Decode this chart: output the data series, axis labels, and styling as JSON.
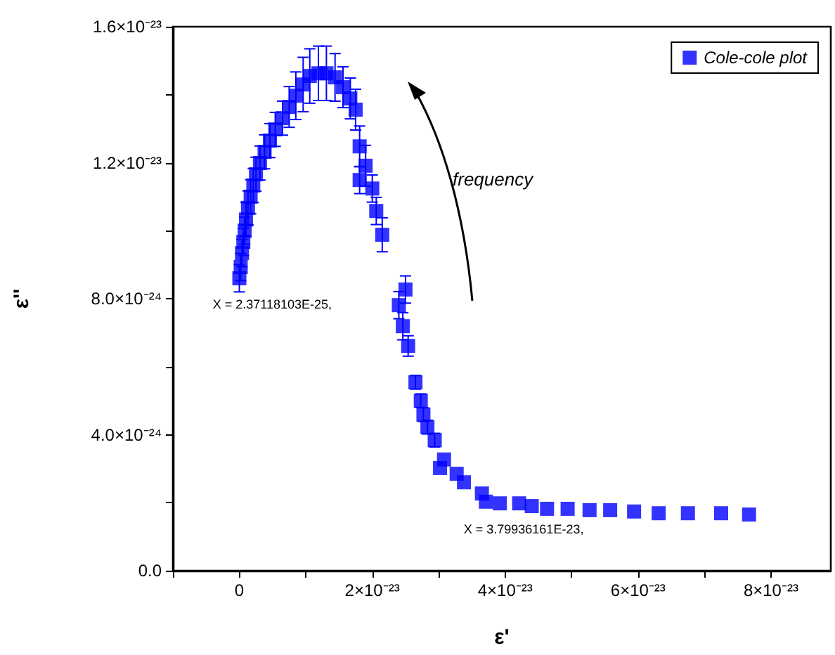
{
  "chart_data": {
    "type": "scatter",
    "xlabel": "ε'",
    "ylabel": "ε''",
    "xlim": [
      -1e-23,
      8.9e-23
    ],
    "ylim": [
      0,
      1.6e-23
    ],
    "xticks": [
      {
        "value": -1e-23,
        "label": null
      },
      {
        "value": 0,
        "label": "0"
      },
      {
        "value": 1e-23,
        "label": null
      },
      {
        "value": 2e-23,
        "label": "2×10⁻²³"
      },
      {
        "value": 3e-23,
        "label": null
      },
      {
        "value": 4e-23,
        "label": "4×10⁻²³"
      },
      {
        "value": 5e-23,
        "label": null
      },
      {
        "value": 6e-23,
        "label": "6×10⁻²³"
      },
      {
        "value": 7e-23,
        "label": null
      },
      {
        "value": 8e-23,
        "label": "8×10⁻²³"
      }
    ],
    "yticks": [
      {
        "value": 0,
        "label": "0.0"
      },
      {
        "value": 2e-24,
        "label": null
      },
      {
        "value": 4e-24,
        "label": "4.0×10⁻²⁴"
      },
      {
        "value": 6e-24,
        "label": null
      },
      {
        "value": 8e-24,
        "label": "8.0×10⁻²⁴"
      },
      {
        "value": 1e-23,
        "label": null
      },
      {
        "value": 1.2e-23,
        "label": "1.2×10⁻²³"
      },
      {
        "value": 1.4e-23,
        "label": null
      },
      {
        "value": 1.6e-23,
        "label": "1.6×10⁻²³"
      }
    ],
    "grid": false,
    "legend": "top right",
    "marker": "square",
    "annotations": [
      {
        "text": "X = 2.37118103E-25,",
        "x": 2.37118103e-25,
        "y": 8.6e-24
      },
      {
        "text": "X = 3.79936161E-23,",
        "x": 3.79936161e-23,
        "y": 1.98e-24
      },
      "frequency"
    ],
    "series": [
      {
        "name": "Cole-cole plot",
        "color": "#0000ff",
        "x": [
          0,
          2e-25,
          4e-25,
          6e-25,
          8e-25,
          1e-24,
          1.3e-24,
          1.7e-24,
          2.1e-24,
          2.5e-24,
          3.1e-24,
          3.8e-24,
          4.6e-24,
          5.4e-24,
          6.5e-24,
          7.5e-24,
          8.5e-24,
          9.6e-24,
          1.06e-23,
          1.19e-23,
          1.31e-23,
          1.44e-23,
          1.56e-23,
          1.67e-23,
          1.75e-23,
          1.81e-23,
          1.9e-23,
          1.81e-23,
          2e-23,
          2.06e-23,
          2.15e-23,
          2.5e-23,
          2.4e-23,
          2.46e-23,
          2.54e-23,
          2.65e-23,
          2.73e-23,
          2.77e-23,
          2.83e-23,
          2.94e-23,
          3.08e-23,
          3.02e-23,
          3.27e-23,
          3.38e-23,
          3.65e-23,
          3.71e-23,
          3.92e-23,
          4.21e-23,
          4.4e-23,
          4.63e-23,
          4.94e-23,
          5.27e-23,
          5.58e-23,
          5.94e-23,
          6.31e-23,
          6.75e-23,
          7.25e-23,
          7.67e-23
        ],
        "values": [
          8.6e-24,
          8.93e-24,
          9.34e-24,
          9.67e-24,
          1e-23,
          1.033e-23,
          1.067e-23,
          1.1e-23,
          1.133e-23,
          1.166e-23,
          1.199e-23,
          1.232e-23,
          1.265e-23,
          1.298e-23,
          1.331e-23,
          1.364e-23,
          1.397e-23,
          1.43e-23,
          1.455e-23,
          1.463e-23,
          1.463e-23,
          1.451e-23,
          1.422e-23,
          1.389e-23,
          1.356e-23,
          1.248e-23,
          1.191e-23,
          1.149e-23,
          1.124e-23,
          1.058e-23,
          9.88e-24,
          8.27e-24,
          7.81e-24,
          7.19e-24,
          6.61e-24,
          5.54e-24,
          5e-24,
          4.59e-24,
          4.22e-24,
          3.84e-24,
          3.27e-24,
          3.02e-24,
          2.85e-24,
          2.6e-24,
          2.27e-24,
          2.03e-24,
          1.98e-24,
          1.98e-24,
          1.9e-24,
          1.82e-24,
          1.82e-24,
          1.78e-24,
          1.78e-24,
          1.74e-24,
          1.69e-24,
          1.69e-24,
          1.69e-24,
          1.65e-24
        ],
        "errors": [
          4e-25,
          4e-25,
          4e-25,
          4e-25,
          4e-25,
          5e-25,
          5e-25,
          5e-25,
          5e-25,
          5e-25,
          5e-25,
          5e-25,
          5e-25,
          5e-25,
          5e-25,
          6e-25,
          7e-25,
          8e-25,
          8e-25,
          8e-25,
          8e-25,
          7e-25,
          6e-25,
          6e-25,
          6e-25,
          6e-25,
          6e-25,
          4e-25,
          4e-25,
          4e-25,
          5e-25,
          4e-25,
          4e-25,
          4e-25,
          3e-25,
          2e-25,
          2e-25,
          2e-25,
          2e-25,
          2e-25,
          null,
          null,
          null,
          null,
          null,
          null,
          null,
          null,
          null,
          null,
          null,
          null,
          null,
          null,
          null,
          null,
          null,
          null
        ]
      }
    ]
  }
}
